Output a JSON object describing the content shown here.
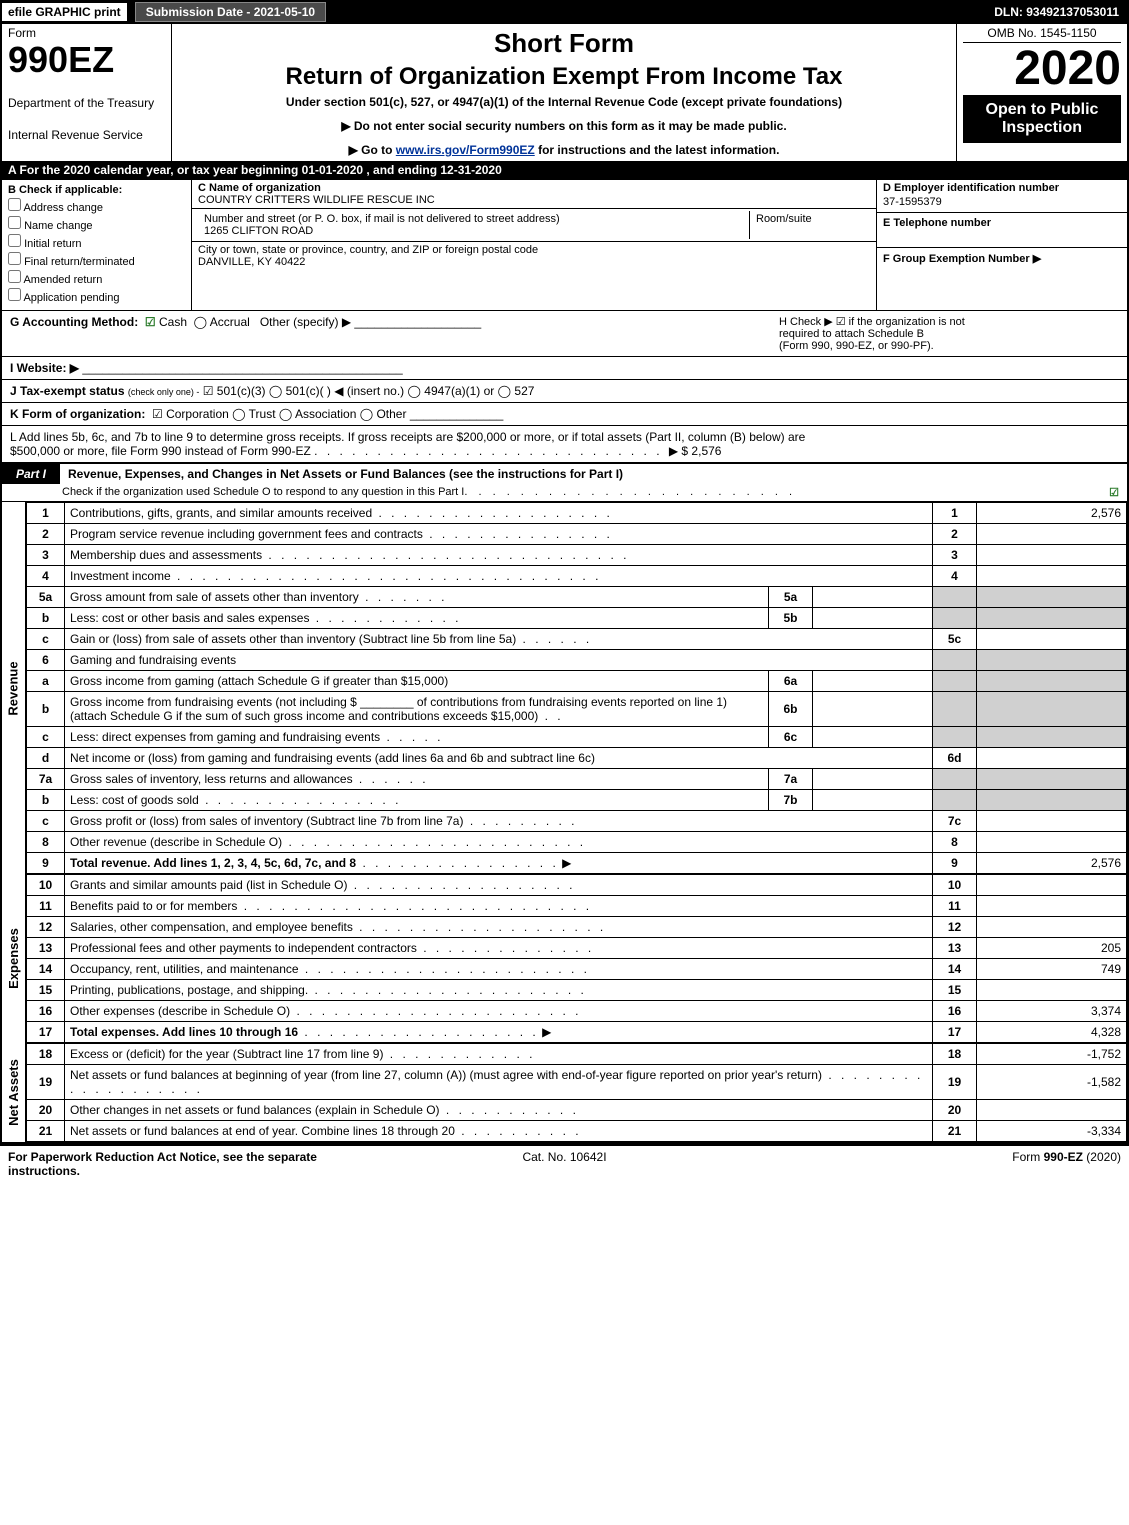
{
  "top": {
    "efile": "efile GRAPHIC print",
    "submission": "Submission Date - 2021-05-10",
    "dln": "DLN: 93492137053011"
  },
  "header": {
    "form_word": "Form",
    "form_num": "990EZ",
    "dept1": "Department of the Treasury",
    "dept2": "Internal Revenue Service",
    "short": "Short Form",
    "return": "Return of Organization Exempt From Income Tax",
    "under": "Under section 501(c), 527, or 4947(a)(1) of the Internal Revenue Code (except private foundations)",
    "noenter": "▶ Do not enter social security numbers on this form as it may be made public.",
    "goto_pre": "▶ Go to ",
    "goto_link": "www.irs.gov/Form990EZ",
    "goto_post": " for instructions and the latest information.",
    "omb": "OMB No. 1545-1150",
    "year": "2020",
    "open": "Open to Public Inspection"
  },
  "sectionA": "A  For the 2020 calendar year, or tax year beginning 01-01-2020 , and ending 12-31-2020",
  "colB": {
    "head": "B  Check if applicable:",
    "items": [
      "Address change",
      "Name change",
      "Initial return",
      "Final return/terminated",
      "Amended return",
      "Application pending"
    ]
  },
  "colC": {
    "name_lbl": "C Name of organization",
    "name": "COUNTRY CRITTERS WILDLIFE RESCUE INC",
    "addr_lbl": "Number and street (or P. O. box, if mail is not delivered to street address)",
    "addr": "1265 CLIFTON ROAD",
    "room_lbl": "Room/suite",
    "city_lbl": "City or town, state or province, country, and ZIP or foreign postal code",
    "city": "DANVILLE, KY  40422"
  },
  "colD": {
    "d_head": "D Employer identification number",
    "ein": "37-1595379",
    "e_head": "E Telephone number",
    "f_head": "F Group Exemption Number   ▶"
  },
  "rowG": {
    "label": "G Accounting Method:",
    "cash": "Cash",
    "accrual": "Accrual",
    "other": "Other (specify) ▶",
    "h_line1": "H  Check ▶ ☑ if the organization is not",
    "h_line2": "required to attach Schedule B",
    "h_line3": "(Form 990, 990-EZ, or 990-PF)."
  },
  "rowI": {
    "label": "I Website: ▶"
  },
  "rowJ": {
    "label": "J Tax-exempt status",
    "small": "(check only one) -",
    "opts": "☑ 501(c)(3)  ◯ 501(c)(  ) ◀ (insert no.)  ◯ 4947(a)(1) or  ◯ 527"
  },
  "rowK": {
    "label": "K Form of organization:",
    "opts": "☑ Corporation   ◯ Trust   ◯ Association   ◯ Other"
  },
  "rowL": {
    "text1": "L Add lines 5b, 6c, and 7b to line 9 to determine gross receipts. If gross receipts are $200,000 or more, or if total assets (Part II, column (B) below) are",
    "text2": "$500,000 or more, file Form 990 instead of Form 990-EZ",
    "amount": "▶ $ 2,576"
  },
  "part1": {
    "label": "Part I",
    "title": "Revenue, Expenses, and Changes in Net Assets or Fund Balances (see the instructions for Part I)",
    "sub": "Check if the organization used Schedule O to respond to any question in this Part I"
  },
  "side_labels": {
    "revenue": "Revenue",
    "expenses": "Expenses",
    "netassets": "Net Assets"
  },
  "lines": {
    "l1": {
      "num": "1",
      "desc": "Contributions, gifts, grants, and similar amounts received",
      "ln": "1",
      "amt": "2,576"
    },
    "l2": {
      "num": "2",
      "desc": "Program service revenue including government fees and contracts",
      "ln": "2",
      "amt": ""
    },
    "l3": {
      "num": "3",
      "desc": "Membership dues and assessments",
      "ln": "3",
      "amt": ""
    },
    "l4": {
      "num": "4",
      "desc": "Investment income",
      "ln": "4",
      "amt": ""
    },
    "l5a": {
      "num": "5a",
      "desc": "Gross amount from sale of assets other than inventory",
      "sub": "5a"
    },
    "l5b": {
      "num": "b",
      "desc": "Less: cost or other basis and sales expenses",
      "sub": "5b"
    },
    "l5c": {
      "num": "c",
      "desc": "Gain or (loss) from sale of assets other than inventory (Subtract line 5b from line 5a)",
      "ln": "5c",
      "amt": ""
    },
    "l6": {
      "num": "6",
      "desc": "Gaming and fundraising events"
    },
    "l6a": {
      "num": "a",
      "desc": "Gross income from gaming (attach Schedule G if greater than $15,000)",
      "sub": "6a"
    },
    "l6b": {
      "num": "b",
      "desc1": "Gross income from fundraising events (not including $",
      "desc2": "of contributions from fundraising events reported on line 1) (attach Schedule G if the sum of such gross income and contributions exceeds $15,000)",
      "sub": "6b"
    },
    "l6c": {
      "num": "c",
      "desc": "Less: direct expenses from gaming and fundraising events",
      "sub": "6c"
    },
    "l6d": {
      "num": "d",
      "desc": "Net income or (loss) from gaming and fundraising events (add lines 6a and 6b and subtract line 6c)",
      "ln": "6d",
      "amt": ""
    },
    "l7a": {
      "num": "7a",
      "desc": "Gross sales of inventory, less returns and allowances",
      "sub": "7a"
    },
    "l7b": {
      "num": "b",
      "desc": "Less: cost of goods sold",
      "sub": "7b"
    },
    "l7c": {
      "num": "c",
      "desc": "Gross profit or (loss) from sales of inventory (Subtract line 7b from line 7a)",
      "ln": "7c",
      "amt": ""
    },
    "l8": {
      "num": "8",
      "desc": "Other revenue (describe in Schedule O)",
      "ln": "8",
      "amt": ""
    },
    "l9": {
      "num": "9",
      "desc": "Total revenue. Add lines 1, 2, 3, 4, 5c, 6d, 7c, and 8",
      "ln": "9",
      "amt": "2,576"
    },
    "l10": {
      "num": "10",
      "desc": "Grants and similar amounts paid (list in Schedule O)",
      "ln": "10",
      "amt": ""
    },
    "l11": {
      "num": "11",
      "desc": "Benefits paid to or for members",
      "ln": "11",
      "amt": ""
    },
    "l12": {
      "num": "12",
      "desc": "Salaries, other compensation, and employee benefits",
      "ln": "12",
      "amt": ""
    },
    "l13": {
      "num": "13",
      "desc": "Professional fees and other payments to independent contractors",
      "ln": "13",
      "amt": "205"
    },
    "l14": {
      "num": "14",
      "desc": "Occupancy, rent, utilities, and maintenance",
      "ln": "14",
      "amt": "749"
    },
    "l15": {
      "num": "15",
      "desc": "Printing, publications, postage, and shipping.",
      "ln": "15",
      "amt": ""
    },
    "l16": {
      "num": "16",
      "desc": "Other expenses (describe in Schedule O)",
      "ln": "16",
      "amt": "3,374"
    },
    "l17": {
      "num": "17",
      "desc": "Total expenses. Add lines 10 through 16",
      "ln": "17",
      "amt": "4,328"
    },
    "l18": {
      "num": "18",
      "desc": "Excess or (deficit) for the year (Subtract line 17 from line 9)",
      "ln": "18",
      "amt": "-1,752"
    },
    "l19": {
      "num": "19",
      "desc": "Net assets or fund balances at beginning of year (from line 27, column (A)) (must agree with end-of-year figure reported on prior year's return)",
      "ln": "19",
      "amt": "-1,582"
    },
    "l20": {
      "num": "20",
      "desc": "Other changes in net assets or fund balances (explain in Schedule O)",
      "ln": "20",
      "amt": ""
    },
    "l21": {
      "num": "21",
      "desc": "Net assets or fund balances at end of year. Combine lines 18 through 20",
      "ln": "21",
      "amt": "-3,334"
    }
  },
  "footer": {
    "left": "For Paperwork Reduction Act Notice, see the separate instructions.",
    "mid": "Cat. No. 10642I",
    "right_pre": "Form ",
    "right_bold": "990-EZ",
    "right_post": " (2020)"
  },
  "colors": {
    "black": "#000000",
    "white": "#ffffff",
    "shade": "#d0d0d0",
    "darkbar": "#4a4a4a",
    "green": "#2a7a2a",
    "link": "#003399"
  }
}
